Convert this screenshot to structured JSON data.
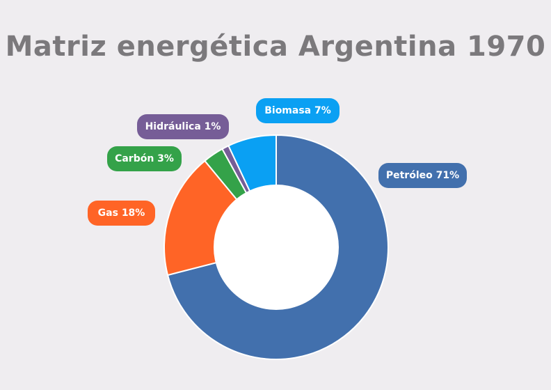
{
  "chart_data": {
    "type": "pie",
    "variant": "donut",
    "title": "Matriz energética Argentina 1970",
    "categories": [
      "Petróleo",
      "Gas",
      "Carbón",
      "Hidráulica",
      "Biomasa"
    ],
    "values": [
      71,
      18,
      3,
      1,
      7
    ],
    "unit": "%",
    "colors": [
      "#4270ad",
      "#ff6426",
      "#34a249",
      "#765d97",
      "#0aa0f3"
    ],
    "labels": [
      "Petróleo 71%",
      "Gas 18%",
      "Carbón 3%",
      "Hidráulica 1%",
      "Biomasa 7%"
    ],
    "start_angle": "top",
    "direction": "clockwise"
  },
  "labels": {
    "petroleo": "Petróleo 71%",
    "gas": "Gas 18%",
    "carbon": "Carbón 3%",
    "hidraulica": "Hidráulica 1%",
    "biomasa": "Biomasa 7%"
  },
  "colors": {
    "background": "#efedf0",
    "title": "#7b797c"
  }
}
